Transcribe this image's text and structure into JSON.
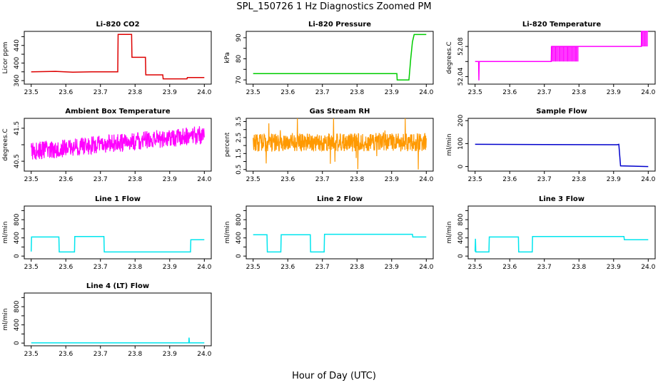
{
  "figure": {
    "title": "SPL_150726  1 Hz Diagnostics Zoomed PM",
    "xlabel": "Hour of Day (UTC)"
  },
  "chart_data": [
    {
      "type": "line",
      "title": "Li-820 CO2",
      "ylabel": "Licor ppm",
      "color": "#dd0000",
      "xlim": [
        23.48,
        24.02
      ],
      "ylim": [
        352,
        472
      ],
      "yticks": [
        360,
        380,
        400,
        420,
        440,
        460
      ],
      "ytick_labels": [
        "360",
        "",
        "400",
        "",
        "440",
        ""
      ],
      "xticks": [
        "23.5",
        "23.6",
        "23.7",
        "23.8",
        "23.9",
        "24.0"
      ],
      "x": [
        23.5,
        23.57,
        23.62,
        23.68,
        23.75,
        23.751,
        23.79,
        23.791,
        23.83,
        23.831,
        23.88,
        23.881,
        23.95,
        23.951,
        24.0
      ],
      "y": [
        380,
        381,
        379,
        380,
        380,
        465,
        465,
        413,
        413,
        373,
        373,
        364,
        364,
        367,
        367
      ]
    },
    {
      "type": "line",
      "title": "Li-820 Pressure",
      "ylabel": "kPa",
      "color": "#00cc00",
      "xlim": [
        23.48,
        24.02
      ],
      "ylim": [
        68,
        93
      ],
      "yticks": [
        70,
        75,
        80,
        85,
        90
      ],
      "ytick_labels": [
        "70",
        "",
        "80",
        "",
        "90"
      ],
      "xticks": [
        "23.5",
        "23.6",
        "23.7",
        "23.8",
        "23.9",
        "24.0"
      ],
      "x": [
        23.5,
        23.9,
        23.915,
        23.916,
        23.95,
        23.955,
        23.96,
        23.965,
        24.0
      ],
      "y": [
        73,
        73,
        73,
        70,
        70,
        80,
        88,
        91.5,
        91.5
      ]
    },
    {
      "type": "line",
      "title": "Li-820 Temperature",
      "ylabel": "degrees.C",
      "color": "#ff00ff",
      "xlim": [
        23.48,
        24.02
      ],
      "ylim": [
        52.03,
        52.1
      ],
      "yticks": [
        52.04,
        52.06,
        52.08
      ],
      "ytick_labels": [
        "52.04",
        "",
        "52.08"
      ],
      "xticks": [
        "23.5",
        "23.6",
        "23.7",
        "23.8",
        "23.9",
        "24.0"
      ],
      "x": [
        23.5,
        23.51,
        23.511,
        23.512,
        23.72,
        23.721,
        23.98,
        23.981,
        24.0
      ],
      "y": [
        52.06,
        52.06,
        52.035,
        52.06,
        52.06,
        52.08,
        52.08,
        52.1,
        52.1
      ]
    },
    {
      "type": "line",
      "title": "Ambient Box Temperature",
      "ylabel": "degrees.C",
      "color": "#ff00ff",
      "xlim": [
        23.48,
        24.02
      ],
      "ylim": [
        40.2,
        41.8
      ],
      "yticks": [
        40.5,
        41.0,
        41.5
      ],
      "ytick_labels": [
        "40.5",
        "",
        "41.5"
      ],
      "xticks": [
        "23.5",
        "23.6",
        "23.7",
        "23.8",
        "23.9",
        "24.0"
      ],
      "x": [
        23.5,
        23.6,
        23.7,
        23.8,
        23.9,
        24.0
      ],
      "y": [
        40.8,
        40.9,
        41.0,
        41.1,
        41.2,
        41.3
      ]
    },
    {
      "type": "line",
      "title": "Gas Stream RH",
      "ylabel": "percent",
      "color": "#ff9900",
      "xlim": [
        23.48,
        24.02
      ],
      "ylim": [
        0.4,
        3.7
      ],
      "yticks": [
        0.5,
        1.0,
        1.5,
        2.0,
        2.5,
        3.0,
        3.5
      ],
      "ytick_labels": [
        "0.5",
        "",
        "1.5",
        "",
        "2.5",
        "",
        "3.5"
      ],
      "xticks": [
        "23.5",
        "23.6",
        "23.7",
        "23.8",
        "23.9",
        "24.0"
      ],
      "x": [
        23.5,
        23.6,
        23.7,
        23.8,
        23.9,
        24.0
      ],
      "y": [
        2.2,
        2.2,
        2.2,
        2.2,
        2.2,
        2.2
      ]
    },
    {
      "type": "line",
      "title": "Sample Flow",
      "ylabel": "ml/min",
      "color": "#0000cc",
      "xlim": [
        23.48,
        24.02
      ],
      "ylim": [
        -20,
        210
      ],
      "yticks": [
        0,
        100,
        200
      ],
      "ytick_labels": [
        "0",
        "100",
        "200"
      ],
      "xticks": [
        "23.5",
        "23.6",
        "23.7",
        "23.8",
        "23.9",
        "24.0"
      ],
      "x": [
        23.5,
        23.91,
        23.915,
        23.92,
        24.0
      ],
      "y": [
        97,
        95,
        97,
        3,
        0
      ]
    },
    {
      "type": "line",
      "title": "Line 1 Flow",
      "ylabel": "ml/min",
      "color": "#00e5ee",
      "xlim": [
        23.48,
        24.02
      ],
      "ylim": [
        -60,
        1100
      ],
      "yticks": [
        0,
        200,
        400,
        600,
        800,
        1000
      ],
      "ytick_labels": [
        "0",
        "",
        "400",
        "",
        "800",
        ""
      ],
      "xticks": [
        "23.5",
        "23.6",
        "23.7",
        "23.8",
        "23.9",
        "24.0"
      ],
      "x": [
        23.5,
        23.501,
        23.58,
        23.581,
        23.625,
        23.626,
        23.71,
        23.711,
        23.96,
        23.961,
        24.0
      ],
      "y": [
        100,
        420,
        420,
        90,
        90,
        430,
        430,
        90,
        90,
        360,
        360
      ]
    },
    {
      "type": "line",
      "title": "Line 2 Flow",
      "ylabel": "ml/min",
      "color": "#00e5ee",
      "xlim": [
        23.48,
        24.02
      ],
      "ylim": [
        -60,
        1100
      ],
      "yticks": [
        0,
        200,
        400,
        600,
        800,
        1000
      ],
      "ytick_labels": [
        "0",
        "",
        "400",
        "",
        "800",
        ""
      ],
      "xticks": [
        "23.5",
        "23.6",
        "23.7",
        "23.8",
        "23.9",
        "24.0"
      ],
      "x": [
        23.5,
        23.54,
        23.541,
        23.58,
        23.581,
        23.665,
        23.666,
        23.705,
        23.706,
        23.96,
        23.961,
        24.0
      ],
      "y": [
        470,
        470,
        90,
        90,
        470,
        470,
        90,
        90,
        480,
        480,
        420,
        420
      ]
    },
    {
      "type": "line",
      "title": "Line 3 Flow",
      "ylabel": "ml/min",
      "color": "#00e5ee",
      "xlim": [
        23.48,
        24.02
      ],
      "ylim": [
        -60,
        1100
      ],
      "yticks": [
        0,
        200,
        400,
        600,
        800,
        1000
      ],
      "ytick_labels": [
        "0",
        "",
        "400",
        "",
        "800",
        ""
      ],
      "xticks": [
        "23.5",
        "23.6",
        "23.7",
        "23.8",
        "23.9",
        "24.0"
      ],
      "x": [
        23.5,
        23.501,
        23.502,
        23.54,
        23.541,
        23.625,
        23.626,
        23.665,
        23.666,
        23.93,
        23.931,
        24.0
      ],
      "y": [
        100,
        380,
        90,
        90,
        420,
        420,
        90,
        90,
        430,
        430,
        360,
        360
      ]
    },
    {
      "type": "line",
      "title": "Line 4 (LT) Flow",
      "ylabel": "ml/min",
      "color": "#00e5ee",
      "xlim": [
        23.48,
        24.02
      ],
      "ylim": [
        -60,
        1100
      ],
      "yticks": [
        0,
        200,
        400,
        600,
        800,
        1000
      ],
      "ytick_labels": [
        "0",
        "",
        "400",
        "",
        "800",
        ""
      ],
      "xticks": [
        "23.5",
        "23.6",
        "23.7",
        "23.8",
        "23.9",
        "24.0"
      ],
      "x": [
        23.5,
        23.955,
        23.956,
        23.957,
        23.958,
        24.0
      ],
      "y": [
        5,
        5,
        120,
        5,
        5,
        5
      ]
    }
  ]
}
